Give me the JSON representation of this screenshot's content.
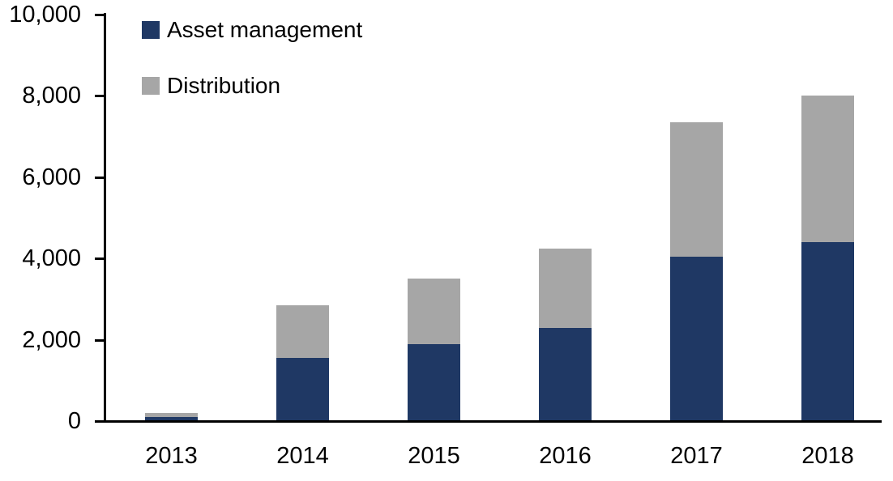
{
  "chart_data": {
    "type": "bar",
    "stacked": true,
    "title": "",
    "categories": [
      "2013",
      "2014",
      "2015",
      "2016",
      "2017",
      "2018"
    ],
    "series": [
      {
        "name": "Asset management",
        "color": "#1F3864",
        "values": [
          100,
          1550,
          1900,
          2300,
          4050,
          4400
        ]
      },
      {
        "name": "Distribution",
        "color": "#A6A6A6",
        "values": [
          100,
          1300,
          1600,
          1950,
          3300,
          3600
        ]
      }
    ],
    "ylim": [
      0,
      10000
    ],
    "y_ticks": [
      0,
      2000,
      4000,
      6000,
      8000,
      10000
    ],
    "y_tick_labels": [
      "0",
      "2,000",
      "4,000",
      "6,000",
      "8,000",
      "10,000"
    ],
    "xlabel": "",
    "ylabel": "",
    "grid": false,
    "legend_position": "top-left",
    "colors": {
      "axis": "#000000",
      "text": "#000000",
      "background": "#FFFFFF"
    }
  }
}
